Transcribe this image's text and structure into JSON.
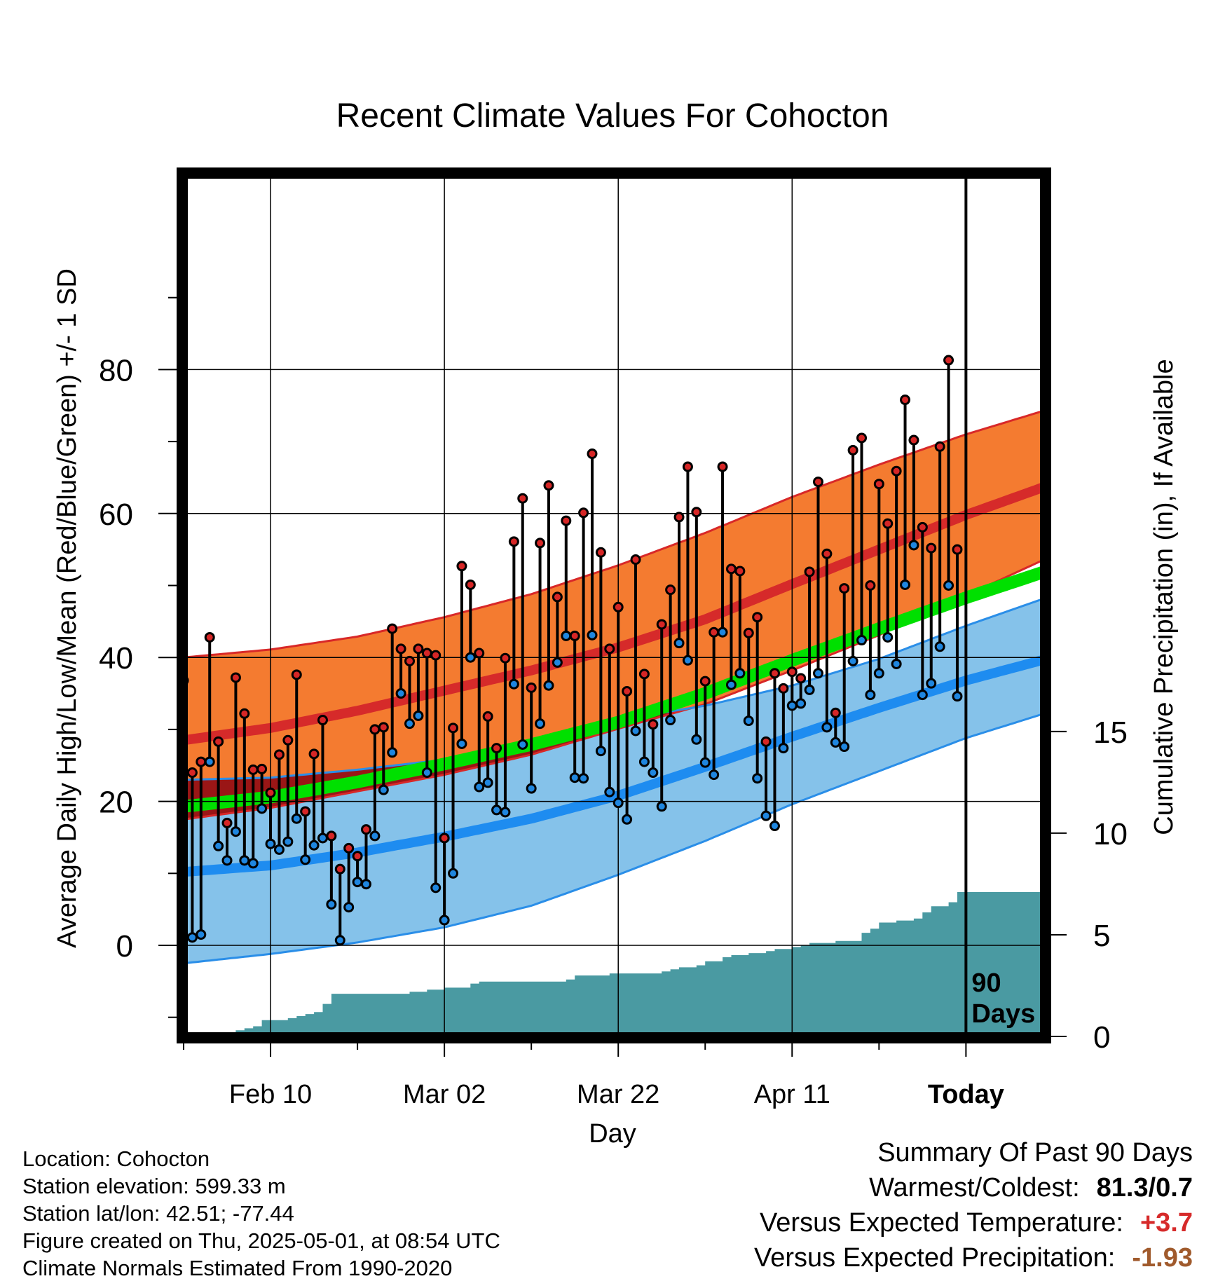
{
  "chart_data": {
    "type": "line",
    "title": "Recent Climate Values For Cohocton",
    "xlabel": "Day",
    "ylabel": "Average Daily High/Low/Mean (Red/Blue/Green) +/- 1 SD",
    "y2label": "Cumulative Precipitation (in), If Available",
    "x_tick_labels": [
      "Feb 10",
      "Mar 02",
      "Mar 22",
      "Apr 11",
      "Today"
    ],
    "x_tick_days": [
      10,
      30,
      50,
      70,
      90
    ],
    "xlim": [
      0,
      99
    ],
    "y_ticks": [
      0,
      20,
      40,
      60,
      80
    ],
    "ylim": [
      -8.5,
      86
    ],
    "y2_ticks": [
      0,
      5,
      10,
      15
    ],
    "y2lim": [
      0,
      42.4
    ],
    "today_marker": {
      "day": 90,
      "label_line1": "90",
      "label_line2": "Days"
    },
    "colors": {
      "high_band": "#f47b30",
      "high_edge": "#d82828",
      "high_mean": "#d62a2a",
      "overlap_band": "#9a1616",
      "low_band": "#85c2ea",
      "low_edge": "#2a8ee8",
      "low_mean": "#1e8cf0",
      "mean_line": "#00e000",
      "precip": "#4a9aa2",
      "high_marker": "#d62626",
      "low_marker": "#1f86df"
    },
    "normals": {
      "days": [
        0,
        10,
        20,
        30,
        40,
        50,
        60,
        70,
        80,
        90,
        99
      ],
      "high_mean": [
        28.5,
        30.2,
        32.6,
        35.4,
        38.2,
        41.4,
        45.3,
        50.2,
        55.0,
        59.8,
        63.7
      ],
      "high_upper": [
        40.0,
        41.1,
        42.9,
        45.6,
        48.8,
        52.8,
        57.3,
        62.3,
        66.8,
        71.0,
        74.3
      ],
      "high_lower": [
        17.5,
        19.1,
        21.4,
        23.7,
        26.5,
        30.1,
        33.5,
        38.2,
        43.1,
        48.6,
        53.6
      ],
      "low_mean": [
        10.2,
        11.1,
        12.9,
        15.1,
        17.6,
        20.8,
        24.8,
        29.0,
        33.0,
        36.8,
        39.7
      ],
      "low_upper": [
        23.0,
        23.3,
        24.4,
        25.8,
        28.2,
        31.3,
        33.3,
        36.1,
        39.8,
        44.4,
        48.2
      ],
      "low_lower": [
        -2.5,
        -1.2,
        0.4,
        2.5,
        5.5,
        9.8,
        14.5,
        19.6,
        24.2,
        28.8,
        32.2
      ],
      "mean": [
        19.3,
        20.6,
        22.7,
        25.2,
        27.9,
        31.0,
        35.0,
        39.6,
        44.0,
        48.3,
        51.9
      ]
    },
    "series": [
      {
        "name": "High",
        "values": [
          36.8,
          24.0,
          25.5,
          42.8,
          28.3,
          17.0,
          37.2,
          32.2,
          24.4,
          24.5,
          21.2,
          26.5,
          28.5,
          37.6,
          18.6,
          26.6,
          31.3,
          15.2,
          10.6,
          13.5,
          12.4,
          16.1,
          30.0,
          30.3,
          44.0,
          41.2,
          39.5,
          41.2,
          40.6,
          40.3,
          14.9,
          30.2,
          52.7,
          50.1,
          40.6,
          31.8,
          27.4,
          39.9,
          56.1,
          62.1,
          35.8,
          55.9,
          63.9,
          48.4,
          59.0,
          43.0,
          60.1,
          68.3,
          54.6,
          41.2,
          47.0,
          35.3,
          53.6,
          37.7,
          30.7,
          44.6,
          49.4,
          59.5,
          66.5,
          60.2,
          36.7,
          43.5,
          66.5,
          52.3,
          52.0,
          43.4,
          45.6,
          28.3,
          37.8,
          35.7,
          38.0,
          37.1,
          51.9,
          64.4,
          54.4,
          32.3,
          49.6,
          68.8,
          70.5,
          50.0,
          64.1,
          58.6,
          65.9,
          75.8,
          70.2,
          58.1,
          55.2,
          69.3,
          81.3,
          55.0
        ]
      },
      {
        "name": "Low",
        "values": [
          24.0,
          1.1,
          1.5,
          25.5,
          13.8,
          11.8,
          15.8,
          11.8,
          11.4,
          19.0,
          14.1,
          13.3,
          14.4,
          17.6,
          11.9,
          13.9,
          14.9,
          5.7,
          0.7,
          5.3,
          8.8,
          8.5,
          15.2,
          21.6,
          26.8,
          35.0,
          30.8,
          31.9,
          24.0,
          8.0,
          3.5,
          10.0,
          28.0,
          40.0,
          22.0,
          22.6,
          18.8,
          18.5,
          36.3,
          27.9,
          21.8,
          30.8,
          36.1,
          39.3,
          43.0,
          23.3,
          23.2,
          43.1,
          27.0,
          21.3,
          19.8,
          17.5,
          29.8,
          25.5,
          24.0,
          19.3,
          31.3,
          42.0,
          39.6,
          28.6,
          25.4,
          23.7,
          43.5,
          36.2,
          37.8,
          31.2,
          23.2,
          18.0,
          16.6,
          27.4,
          33.3,
          33.6,
          35.5,
          37.8,
          30.3,
          28.2,
          27.6,
          39.5,
          42.4,
          34.8,
          37.8,
          42.8,
          39.1,
          50.1,
          55.6,
          34.8,
          36.4,
          41.5,
          50.0,
          34.6
        ]
      },
      {
        "name": "Precipitation",
        "values": [
          0.0,
          0.0,
          0.0,
          0.0,
          0.1,
          0.2,
          0.3,
          0.4,
          0.5,
          0.8,
          0.8,
          0.8,
          0.9,
          1.0,
          1.1,
          1.2,
          1.6,
          2.1,
          2.1,
          2.1,
          2.1,
          2.1,
          2.1,
          2.1,
          2.1,
          2.1,
          2.2,
          2.2,
          2.3,
          2.3,
          2.4,
          2.4,
          2.4,
          2.6,
          2.7,
          2.7,
          2.7,
          2.7,
          2.7,
          2.7,
          2.7,
          2.7,
          2.7,
          2.7,
          2.8,
          3.0,
          3.0,
          3.0,
          3.0,
          3.1,
          3.1,
          3.1,
          3.1,
          3.1,
          3.1,
          3.2,
          3.3,
          3.4,
          3.4,
          3.5,
          3.7,
          3.7,
          3.9,
          4.0,
          4.0,
          4.1,
          4.1,
          4.2,
          4.3,
          4.3,
          4.4,
          4.5,
          4.6,
          4.6,
          4.6,
          4.7,
          4.7,
          4.7,
          5.1,
          5.3,
          5.6,
          5.6,
          5.7,
          5.7,
          5.8,
          6.1,
          6.4,
          6.4,
          6.6,
          7.1,
          7.1
        ]
      }
    ]
  },
  "footer": {
    "location": "Location: Cohocton",
    "elevation": "Station elevation: 599.33 m",
    "latlon": "Station lat/lon: 42.51; -77.44",
    "created": "Figure created on Thu, 2025-05-01, at 08:54 UTC",
    "normals_note": "Climate Normals Estimated From 1990-2020"
  },
  "summary": {
    "title": "Summary Of Past 90 Days",
    "warmest_label": "Warmest/Coldest:",
    "warmest_value": "81.3/0.7",
    "temp_label": "Versus Expected Temperature:",
    "temp_value": "+3.7",
    "temp_color": "#d62a2a",
    "precip_label": "Versus Expected Precipitation:",
    "precip_value": "-1.93",
    "precip_color": "#a05a2c"
  }
}
